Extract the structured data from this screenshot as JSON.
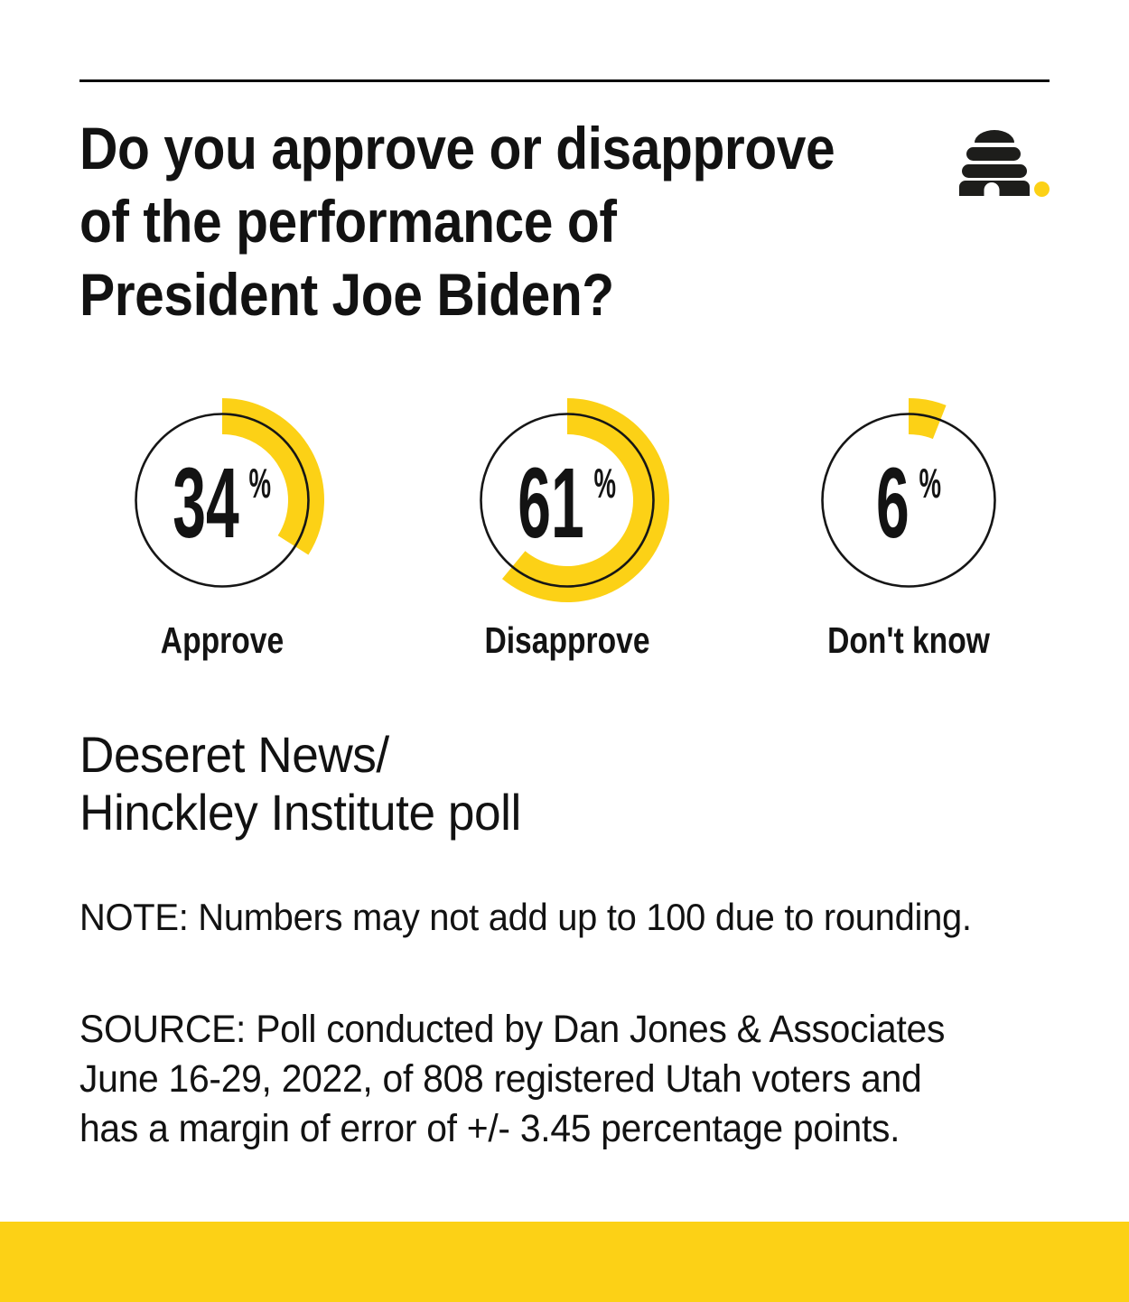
{
  "page": {
    "background": "#FFFFFF",
    "accent_yellow": "#FCD116",
    "logo_color": "#1D1D1B",
    "text_color": "#121212"
  },
  "header": {
    "title": "Do you approve or disapprove\nof the performance of\nPresident Joe Biden?",
    "logo": "deseret-news-beehive-logo"
  },
  "chart_data": {
    "type": "pie",
    "variant": "donut-gauge-trio",
    "title": "Do you approve or disapprove of the performance of President Joe Biden?",
    "categories": [
      "Approve",
      "Disapprove",
      "Don't know"
    ],
    "values": [
      34,
      61,
      6
    ],
    "unit": "%",
    "arc_start": "12-oclock",
    "direction": "clockwise",
    "legend_position": "below-each-donut",
    "colors": {
      "arc": "#FCD116",
      "ring": "#161616",
      "value_text": "#131313"
    }
  },
  "attribution": {
    "poll_credit": "Deseret News/\nHinckley Institute poll"
  },
  "notes": {
    "note": "NOTE: Numbers may not add up to 100 due to rounding.",
    "source": "SOURCE: Poll conducted by Dan Jones & Associates\nJune 16-29, 2022, of 808 registered Utah voters and\nhas a margin of error of +/- 3.45 percentage points."
  }
}
